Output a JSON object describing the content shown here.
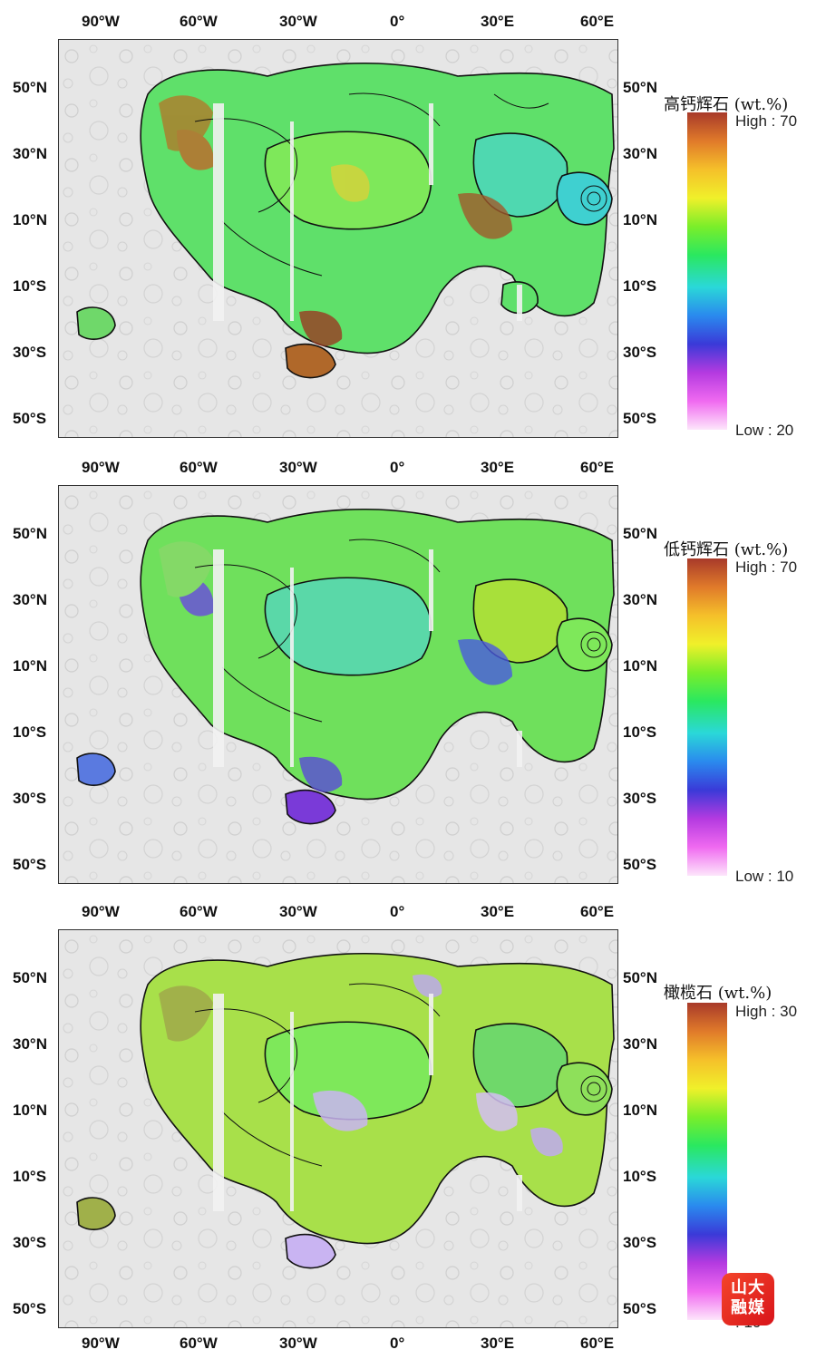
{
  "axes": {
    "longitude_labels": [
      "90°W",
      "60°W",
      "30°W",
      "0°",
      "30°E",
      "60°E"
    ],
    "latitude_labels": [
      "50°N",
      "30°N",
      "10°N",
      "10°S",
      "30°S",
      "50°S"
    ]
  },
  "panels": [
    {
      "mineral_title": "高钙辉石 (wt.%)",
      "high_label": "High : 70",
      "low_label": "Low : 20",
      "dominant_color": "#5fe06a",
      "secondary_color": "#b07a2a"
    },
    {
      "mineral_title": "低钙辉石 (wt.%)",
      "high_label": "High : 70",
      "low_label": "Low : 10",
      "dominant_color": "#6fe05c",
      "secondary_color": "#7a5ae0"
    },
    {
      "mineral_title": "橄榄石 (wt.%)",
      "high_label": "High : 30",
      "low_label": ": 10",
      "dominant_color": "#a8e04a",
      "secondary_color": "#c9b4f2"
    }
  ],
  "colorbar_colors": [
    "#a83a2a",
    "#e07a2a",
    "#f5c02a",
    "#f0f02a",
    "#7aee2a",
    "#2ae860",
    "#2ad8d8",
    "#2a8aee",
    "#3a3ad8",
    "#b43ae0",
    "#f06af0",
    "#fde6fb"
  ],
  "watermark": {
    "text_line1": "山大",
    "text_line2": "融媒"
  }
}
